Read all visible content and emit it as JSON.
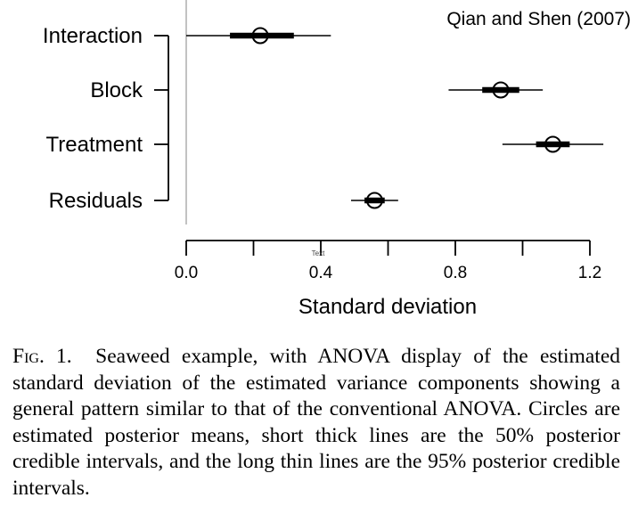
{
  "chart_data": {
    "type": "interval",
    "annotation": "Qian and Shen (2007)",
    "xlabel": "Standard deviation",
    "ylabel": "",
    "xlim": [
      0.0,
      1.3
    ],
    "x_ticks": [
      0.0,
      0.2,
      0.4,
      0.6,
      0.8,
      1.0,
      1.2
    ],
    "x_tick_labels": [
      "0.0",
      "0.4",
      "0.8",
      "1.2"
    ],
    "x_tick_label_values": [
      0.0,
      0.4,
      0.8,
      1.2
    ],
    "stray_text": "Text",
    "categories": [
      "Interaction",
      "Block",
      "Treatment",
      "Residuals"
    ],
    "points": [
      {
        "label": "Interaction",
        "mean": 0.22,
        "ci50": [
          0.13,
          0.32
        ],
        "ci95": [
          0.0,
          0.43
        ]
      },
      {
        "label": "Block",
        "mean": 0.935,
        "ci50": [
          0.88,
          0.99
        ],
        "ci95": [
          0.78,
          1.06
        ]
      },
      {
        "label": "Treatment",
        "mean": 1.09,
        "ci50": [
          1.04,
          1.14
        ],
        "ci95": [
          0.94,
          1.24
        ]
      },
      {
        "label": "Residuals",
        "mean": 0.56,
        "ci50": [
          0.53,
          0.59
        ],
        "ci95": [
          0.49,
          0.63
        ]
      }
    ],
    "reference_line": 0.0,
    "grid": false,
    "legend": "none"
  },
  "caption": {
    "label": "Fig. 1.",
    "text": "Seaweed example, with ANOVA display of the estimated standard deviation of the estimated variance components showing a general pattern similar to that of the conventional ANOVA. Circles are estimated posterior means, short thick lines are the 50% posterior credible intervals, and the long thin lines are the 95% posterior credible intervals."
  }
}
